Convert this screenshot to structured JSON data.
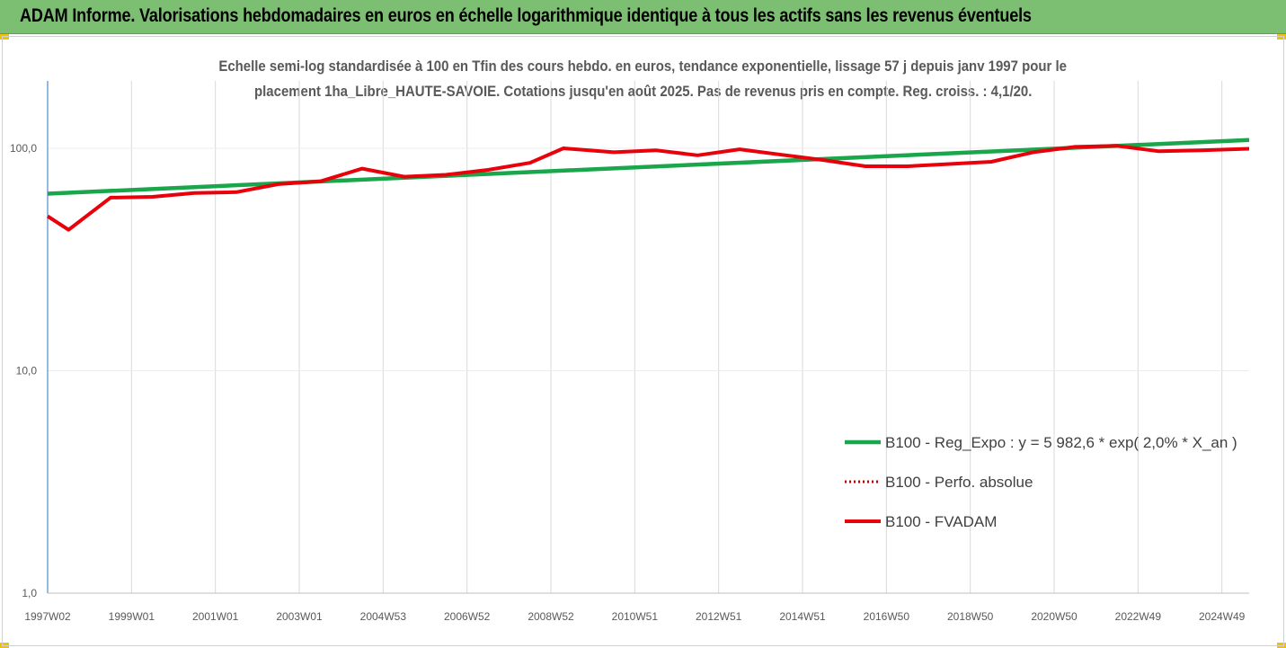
{
  "header": {
    "title": "ADAM Informe. Valorisations hebdomadaires en euros en échelle logarithmique identique à tous les actifs sans les revenus éventuels"
  },
  "colors": {
    "header_bg": "#7dbf72",
    "corner": "#f2c200",
    "trend": "#1aa64a",
    "fvadam": "#e8000b",
    "perf": "#c00000",
    "axis": "#2e75b6",
    "grid": "#d9d9d9"
  },
  "chart_data": {
    "type": "line",
    "title_line1": "Echelle semi-log standardisée à 100 en Tfin des cours hebdo. en euros, tendance exponentielle, lissage 57 j depuis janv 1997 pour le",
    "title_line2": "placement 1ha_Libre_HAUTE-SAVOIE. Cotations jusqu'en août 2025.  Pas de revenus pris en compte. Reg. croiss. : 4,1/20.",
    "y_scale": "log",
    "ylim": [
      1,
      180
    ],
    "y_ticks": [
      {
        "value": 100,
        "label": "100,0"
      },
      {
        "value": 10,
        "label": "10,0"
      },
      {
        "value": 1,
        "label": "1,0"
      }
    ],
    "x_range": [
      1997.0,
      2025.65
    ],
    "x_ticks": [
      {
        "x": 1997.0,
        "label": "1997W02"
      },
      {
        "x": 1999.0,
        "label": "1999W01"
      },
      {
        "x": 2001.0,
        "label": "2001W01"
      },
      {
        "x": 2003.0,
        "label": "2003W01"
      },
      {
        "x": 2005.0,
        "label": "2004W53"
      },
      {
        "x": 2007.0,
        "label": "2006W52"
      },
      {
        "x": 2009.0,
        "label": "2008W52"
      },
      {
        "x": 2011.0,
        "label": "2010W51"
      },
      {
        "x": 2013.0,
        "label": "2012W51"
      },
      {
        "x": 2015.0,
        "label": "2014W51"
      },
      {
        "x": 2017.0,
        "label": "2016W50"
      },
      {
        "x": 2019.0,
        "label": "2018W50"
      },
      {
        "x": 2021.0,
        "label": "2020W50"
      },
      {
        "x": 2023.0,
        "label": "2022W49"
      },
      {
        "x": 2025.0,
        "label": "2024W49"
      }
    ],
    "grid": "vertical",
    "legend_position": "right",
    "series": [
      {
        "name": "B100 - Reg_Expo : y = 5 982,6 * exp( 2,0% *  X_an )",
        "color": "#1aa64a",
        "style": "solid",
        "points": [
          [
            1997.0,
            62.5
          ],
          [
            2025.65,
            109.0
          ]
        ]
      },
      {
        "name": "B100 - Perfo. absolue",
        "color": "#c00000",
        "style": "dotted",
        "points": []
      },
      {
        "name": "B100 - FVADAM",
        "color": "#e8000b",
        "style": "solid",
        "points": [
          [
            1997.0,
            49.5
          ],
          [
            1997.5,
            43.0
          ],
          [
            1998.5,
            60.0
          ],
          [
            1999.5,
            60.5
          ],
          [
            2000.5,
            63.0
          ],
          [
            2001.5,
            63.5
          ],
          [
            2002.5,
            69.0
          ],
          [
            2003.5,
            71.0
          ],
          [
            2004.5,
            81.0
          ],
          [
            2005.5,
            74.5
          ],
          [
            2006.5,
            76.0
          ],
          [
            2007.5,
            80.0
          ],
          [
            2008.5,
            86.0
          ],
          [
            2009.3,
            100.0
          ],
          [
            2010.5,
            96.0
          ],
          [
            2011.5,
            98.0
          ],
          [
            2012.5,
            93.0
          ],
          [
            2013.5,
            99.0
          ],
          [
            2014.5,
            93.5
          ],
          [
            2015.5,
            88.5
          ],
          [
            2016.5,
            83.0
          ],
          [
            2017.5,
            83.0
          ],
          [
            2018.5,
            85.0
          ],
          [
            2019.5,
            87.0
          ],
          [
            2020.5,
            96.0
          ],
          [
            2021.5,
            101.5
          ],
          [
            2022.5,
            102.5
          ],
          [
            2023.5,
            97.0
          ],
          [
            2024.5,
            98.0
          ],
          [
            2025.65,
            99.5
          ]
        ]
      }
    ]
  }
}
